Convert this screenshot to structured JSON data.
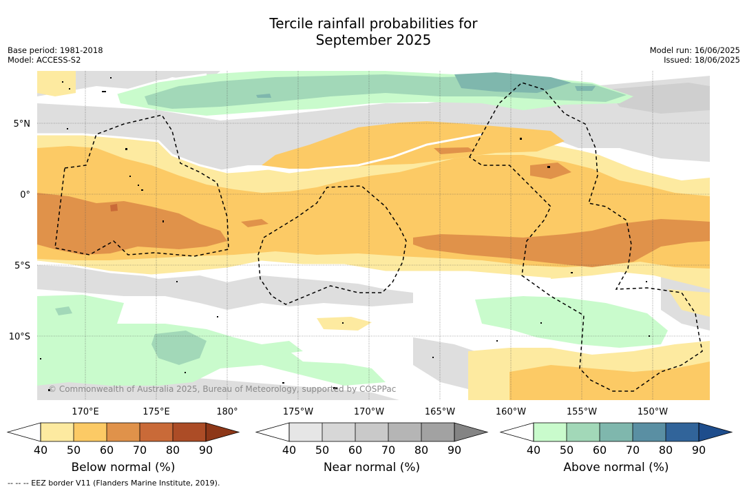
{
  "title_line1": "Tercile rainfall probabilities for",
  "title_line2": "September 2025",
  "meta_left": [
    "Base period: 1981-2018",
    "Model: ACCESS-S2"
  ],
  "meta_right": [
    "Model run: 16/06/2025",
    "Issued: 18/06/2025"
  ],
  "credit": "© Commonwealth of Australia 2025, Bureau of Meteorology, supported by COSPPac",
  "footer": "--  --  -- EEZ border V11 (Flanders Marine Institute, 2019).",
  "lat_labels": [
    "5°N",
    "0°",
    "5°S",
    "10°S"
  ],
  "lon_labels": [
    "170°E",
    "175°E",
    "180°",
    "175°W",
    "170°W",
    "165°W",
    "160°W",
    "155°W",
    "150°W"
  ],
  "colorbars": [
    {
      "title": "Below normal (%)",
      "ticks": [
        "40",
        "50",
        "60",
        "70",
        "80",
        "90"
      ],
      "colors": [
        "#ffffff",
        "#fdeaa0",
        "#fcca65",
        "#e0924a",
        "#c96a38",
        "#ac4c26",
        "#8d3718"
      ]
    },
    {
      "title": "Near normal (%)",
      "ticks": [
        "40",
        "50",
        "60",
        "70",
        "80",
        "90"
      ],
      "colors": [
        "#ffffff",
        "#e6e6e6",
        "#d7d7d7",
        "#c9c9c9",
        "#b5b5b5",
        "#a2a2a2",
        "#848484"
      ]
    },
    {
      "title": "Above normal (%)",
      "ticks": [
        "40",
        "50",
        "60",
        "70",
        "80",
        "90"
      ],
      "colors": [
        "#ffffff",
        "#c9fbcc",
        "#a2d8b8",
        "#7fb7ad",
        "#5a8fa3",
        "#31649a",
        "#1e4d8c"
      ]
    }
  ]
}
